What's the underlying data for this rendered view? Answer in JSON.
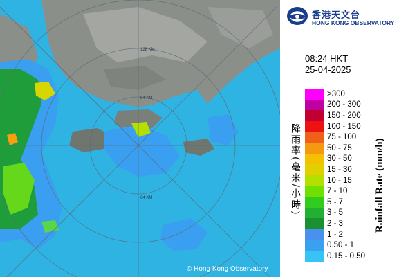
{
  "map": {
    "copyright": "© Hong Kong Observatory",
    "ring_labels": [
      "64 KM",
      "128 KM",
      "64 KM"
    ]
  },
  "logo": {
    "name_cn": "香港天文台",
    "name_en": "HONG KONG OBSERVATORY",
    "icon": "observatory-logo-icon"
  },
  "timestamp": {
    "time": "08:24 HKT",
    "date": "25-04-2025"
  },
  "legend": {
    "title_en": "Rainfall Rate (mm/h)",
    "title_cn": "降雨率(毫米/小時)",
    "items": [
      {
        "label": ">300",
        "color": "#ff00ff"
      },
      {
        "label": "200 - 300",
        "color": "#c000a0"
      },
      {
        "label": "150 - 200",
        "color": "#c00030"
      },
      {
        "label": "100 - 150",
        "color": "#ee1111"
      },
      {
        "label": "75 - 100",
        "color": "#f06018"
      },
      {
        "label": "50 - 75",
        "color": "#f59a10"
      },
      {
        "label": "30 - 50",
        "color": "#f5c000"
      },
      {
        "label": "15 - 30",
        "color": "#e0d000"
      },
      {
        "label": "10 - 15",
        "color": "#b4e000"
      },
      {
        "label": "7 - 10",
        "color": "#70e000"
      },
      {
        "label": "5 - 7",
        "color": "#30cc20"
      },
      {
        "label": "3 - 5",
        "color": "#22b030"
      },
      {
        "label": "2 - 3",
        "color": "#1a9030"
      },
      {
        "label": "1 - 2",
        "color": "#4a90f0"
      },
      {
        "label": "0.50 - 1",
        "color": "#3aa0f0"
      },
      {
        "label": "0.15 - 0.50",
        "color": "#36c4f4"
      }
    ]
  }
}
